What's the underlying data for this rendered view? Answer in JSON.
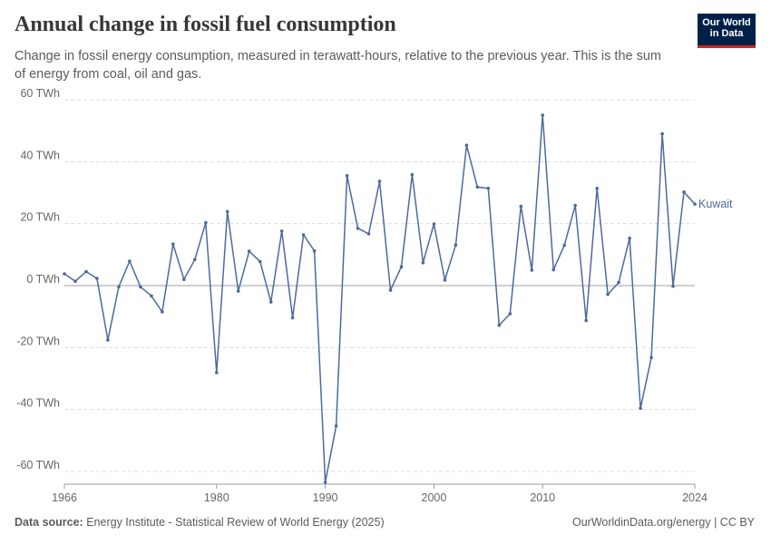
{
  "header": {
    "title": "Annual change in fossil fuel consumption",
    "subtitle": "Change in fossil energy consumption, measured in terawatt-hours, relative to the previous year. This is the sum of energy from coal, oil and gas."
  },
  "logo": {
    "line1": "Our World",
    "line2": "in Data",
    "bg_color": "#002147",
    "accent_color": "#ce261e"
  },
  "footer": {
    "source_label": "Data source:",
    "source_text": "Energy Institute - Statistical Review of World Energy (2025)",
    "right_text": "OurWorldinData.org/energy | CC BY"
  },
  "chart_data": {
    "type": "line",
    "title": "Annual change in fossil fuel consumption",
    "ylabel": "",
    "xlabel": "",
    "ylim": [
      -64,
      60
    ],
    "xlim": [
      1966,
      2024
    ],
    "y_ticks": [
      {
        "value": 60,
        "label": "60 TWh"
      },
      {
        "value": 40,
        "label": "40 TWh"
      },
      {
        "value": 20,
        "label": "20 TWh"
      },
      {
        "value": 0,
        "label": "0 TWh"
      },
      {
        "value": -20,
        "label": "-20 TWh"
      },
      {
        "value": -40,
        "label": "-40 TWh"
      },
      {
        "value": -60,
        "label": "-60 TWh"
      }
    ],
    "x_ticks": [
      {
        "value": 1966,
        "label": "1966"
      },
      {
        "value": 1980,
        "label": "1980"
      },
      {
        "value": 1990,
        "label": "1990"
      },
      {
        "value": 2000,
        "label": "2000"
      },
      {
        "value": 2010,
        "label": "2010"
      },
      {
        "value": 2024,
        "label": "2024"
      }
    ],
    "grid": true,
    "series_color": "#4c6a9c",
    "series": [
      {
        "name": "Kuwait",
        "x": [
          1966,
          1967,
          1968,
          1969,
          1970,
          1971,
          1972,
          1973,
          1974,
          1975,
          1976,
          1977,
          1978,
          1979,
          1980,
          1981,
          1982,
          1983,
          1984,
          1985,
          1986,
          1987,
          1988,
          1989,
          1990,
          1991,
          1992,
          1993,
          1994,
          1995,
          1996,
          1997,
          1998,
          1999,
          2000,
          2001,
          2002,
          2003,
          2004,
          2005,
          2006,
          2007,
          2008,
          2009,
          2010,
          2011,
          2012,
          2013,
          2014,
          2015,
          2016,
          2017,
          2018,
          2019,
          2020,
          2021,
          2022,
          2023,
          2024
        ],
        "values": [
          3.8,
          1.4,
          4.5,
          2.3,
          -17.6,
          -0.4,
          7.9,
          -0.4,
          -3.3,
          -8.5,
          13.4,
          2.0,
          8.4,
          20.3,
          -28.1,
          23.9,
          -1.8,
          11.1,
          7.8,
          -5.3,
          17.6,
          -10.4,
          16.4,
          11.2,
          -63.5,
          -45.3,
          35.5,
          18.5,
          16.7,
          33.7,
          -1.5,
          6.1,
          35.8,
          7.4,
          19.9,
          1.8,
          13.1,
          45.3,
          31.8,
          31.4,
          -12.8,
          -9.1,
          25.6,
          5.0,
          55.0,
          5.1,
          13.0,
          25.9,
          -11.3,
          31.4,
          -2.8,
          1.0,
          15.3,
          -39.6,
          -23.2,
          49.0,
          -0.2,
          30.2,
          26.3
        ]
      }
    ]
  }
}
